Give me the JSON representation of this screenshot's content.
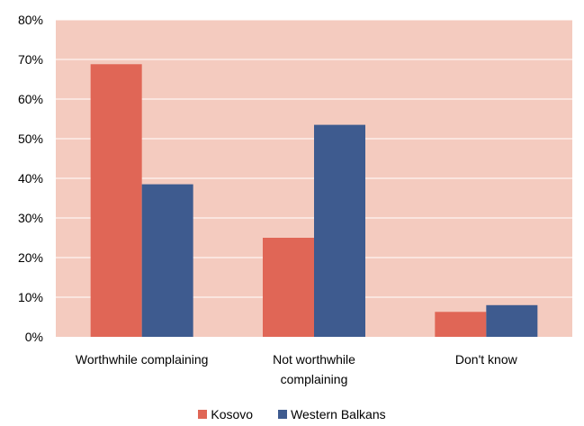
{
  "chart_data": {
    "type": "bar",
    "title": "",
    "xlabel": "",
    "ylabel": "",
    "ylim": [
      0,
      80
    ],
    "y_ticks": [
      0,
      10,
      20,
      30,
      40,
      50,
      60,
      70,
      80
    ],
    "y_tick_suffix": "%",
    "plot_background": "#f4cbbf",
    "grid": true,
    "legend_position": "bottom",
    "categories": [
      [
        "Worthwhile complaining"
      ],
      [
        "Not worthwhile",
        "complaining"
      ],
      [
        "Don't know"
      ]
    ],
    "series": [
      {
        "name": "Kosovo",
        "color": "#e06656",
        "values": [
          68.8,
          25.0,
          6.3
        ]
      },
      {
        "name": "Western Balkans",
        "color": "#3e5b8f",
        "values": [
          38.5,
          53.5,
          8.0
        ]
      }
    ]
  }
}
